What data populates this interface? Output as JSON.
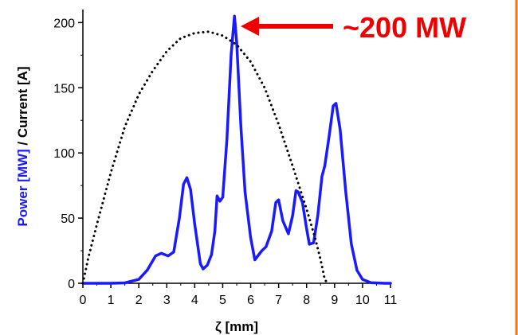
{
  "chart_data": {
    "type": "line",
    "xlabel": "ζ [mm]",
    "ylabel_parts": [
      {
        "text": "Power [MW]",
        "color": "#1a1aff"
      },
      {
        "text": " / Current [A]",
        "color": "#000000"
      }
    ],
    "xlim": [
      0,
      11
    ],
    "ylim": [
      0,
      210
    ],
    "xticks": [
      0,
      1,
      2,
      3,
      4,
      5,
      6,
      7,
      8,
      9,
      10,
      11
    ],
    "yticks": [
      0,
      50,
      100,
      150,
      200
    ],
    "grid": false,
    "series": [
      {
        "color": "#1a1aff",
        "style": "solid",
        "points": [
          [
            0,
            0
          ],
          [
            1,
            0
          ],
          [
            1.5,
            0.3
          ],
          [
            2,
            3
          ],
          [
            2.3,
            10
          ],
          [
            2.6,
            21
          ],
          [
            2.8,
            23
          ],
          [
            3.05,
            21
          ],
          [
            3.25,
            24
          ],
          [
            3.45,
            50
          ],
          [
            3.6,
            76
          ],
          [
            3.72,
            81
          ],
          [
            3.85,
            72
          ],
          [
            4.0,
            45
          ],
          [
            4.2,
            15
          ],
          [
            4.3,
            11
          ],
          [
            4.45,
            14
          ],
          [
            4.6,
            22
          ],
          [
            4.72,
            40
          ],
          [
            4.8,
            67
          ],
          [
            4.9,
            63
          ],
          [
            5.0,
            66
          ],
          [
            5.15,
            110
          ],
          [
            5.3,
            175
          ],
          [
            5.42,
            205
          ],
          [
            5.5,
            185
          ],
          [
            5.65,
            120
          ],
          [
            5.8,
            70
          ],
          [
            6.0,
            35
          ],
          [
            6.15,
            18
          ],
          [
            6.4,
            25
          ],
          [
            6.55,
            28
          ],
          [
            6.75,
            40
          ],
          [
            6.9,
            62
          ],
          [
            7.0,
            64
          ],
          [
            7.15,
            48
          ],
          [
            7.35,
            38
          ],
          [
            7.5,
            52
          ],
          [
            7.62,
            71
          ],
          [
            7.7,
            70
          ],
          [
            7.85,
            62
          ],
          [
            8.0,
            42
          ],
          [
            8.1,
            30
          ],
          [
            8.25,
            31
          ],
          [
            8.4,
            52
          ],
          [
            8.55,
            82
          ],
          [
            8.65,
            90
          ],
          [
            8.8,
            112
          ],
          [
            8.95,
            136
          ],
          [
            9.05,
            138
          ],
          [
            9.2,
            118
          ],
          [
            9.4,
            70
          ],
          [
            9.6,
            30
          ],
          [
            9.8,
            10
          ],
          [
            10.0,
            3
          ],
          [
            10.3,
            0.5
          ],
          [
            10.8,
            0
          ],
          [
            11,
            0
          ]
        ]
      },
      {
        "color": "#000000",
        "style": "dotted",
        "points": [
          [
            0,
            0
          ],
          [
            0.2,
            20
          ],
          [
            0.5,
            45
          ],
          [
            1,
            85
          ],
          [
            1.5,
            120
          ],
          [
            2,
            145
          ],
          [
            2.5,
            163
          ],
          [
            3,
            178
          ],
          [
            3.5,
            188
          ],
          [
            4,
            192
          ],
          [
            4.5,
            193
          ],
          [
            5,
            190
          ],
          [
            5.5,
            183
          ],
          [
            6,
            170
          ],
          [
            6.5,
            150
          ],
          [
            7,
            122
          ],
          [
            7.5,
            90
          ],
          [
            8,
            57
          ],
          [
            8.3,
            35
          ],
          [
            8.5,
            18
          ],
          [
            8.65,
            3
          ],
          [
            8.75,
            0
          ]
        ]
      }
    ],
    "annotations": [
      {
        "text": "~200 MW",
        "color": "#ee0000",
        "arrow_to": [
          5.55,
          203
        ]
      }
    ]
  }
}
